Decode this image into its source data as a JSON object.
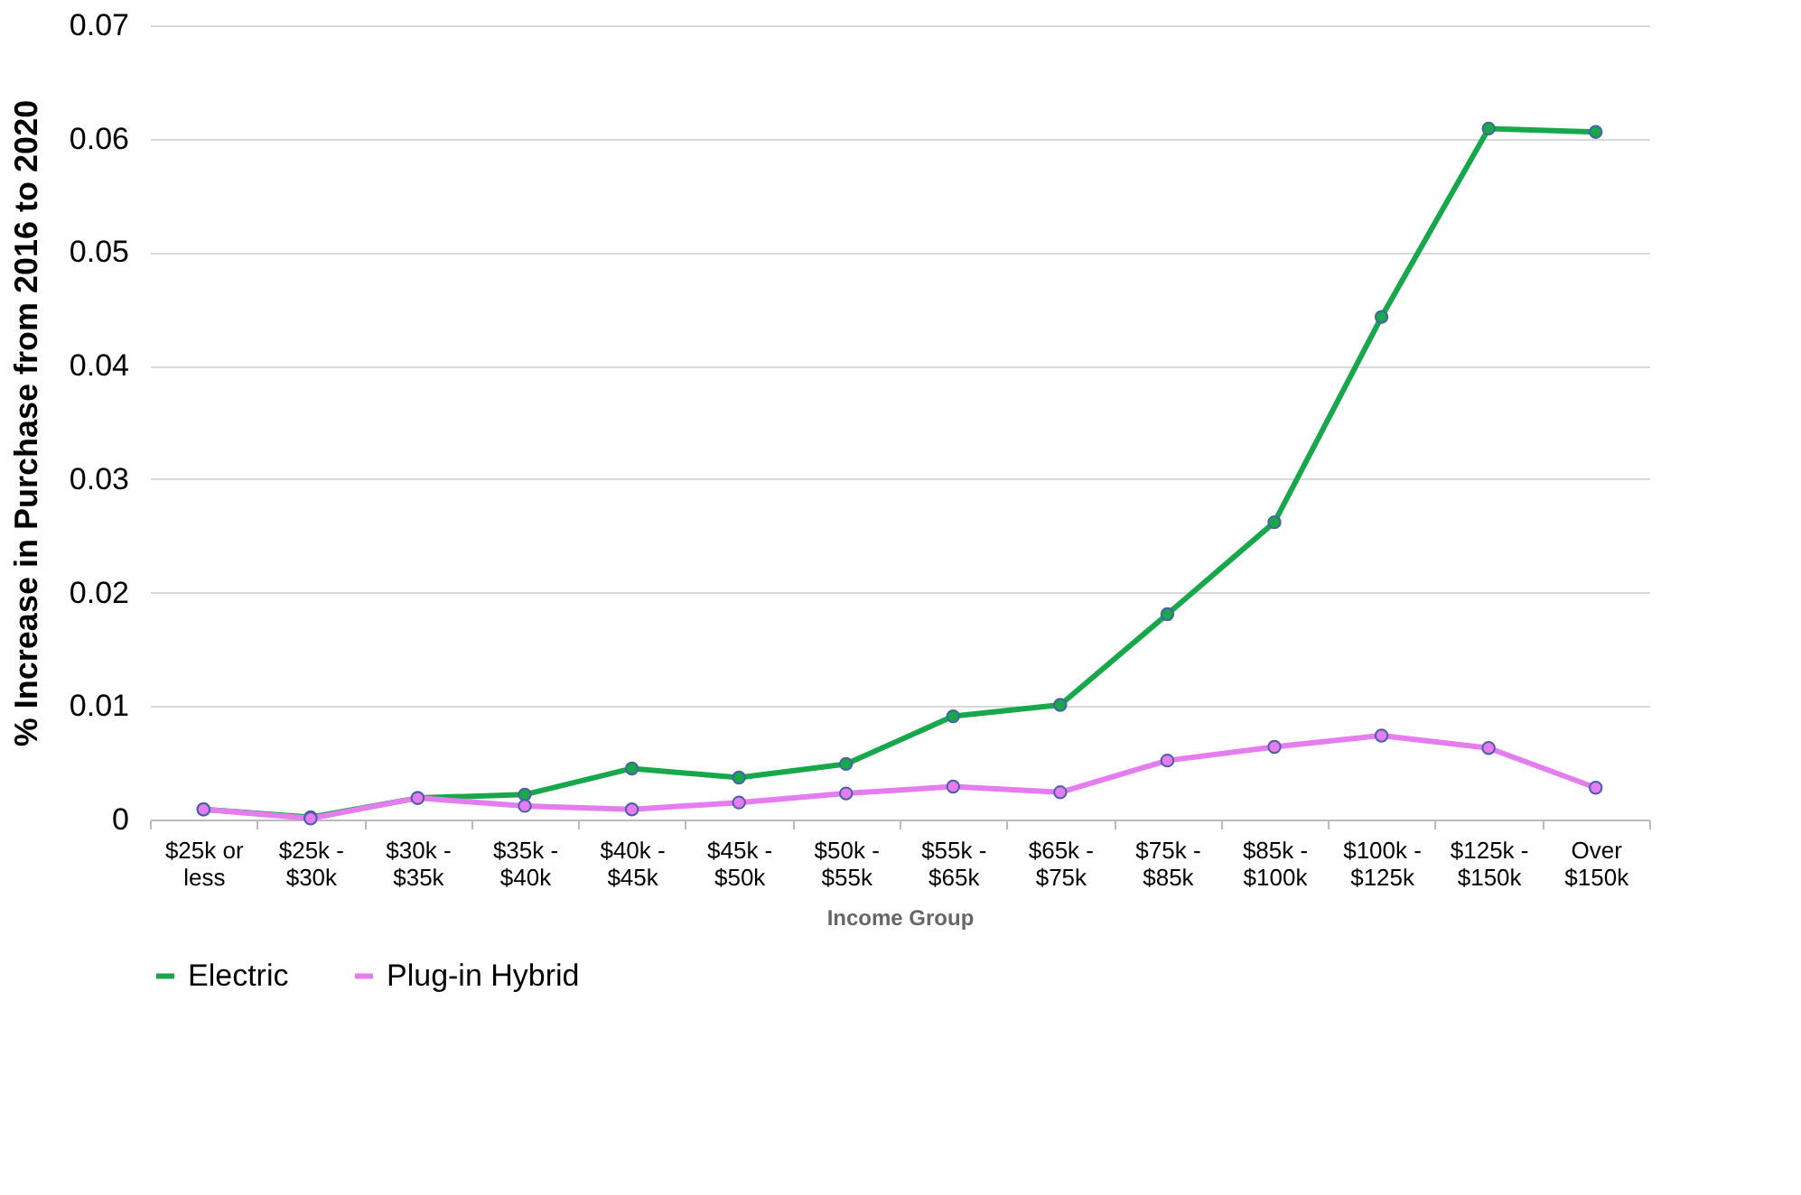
{
  "chart_data": {
    "type": "line",
    "xlabel": "Income Group",
    "ylabel": "% Increase in Purchase from 2016 to 2020",
    "categories": [
      "$25k or less",
      "$25k - $30k",
      "$30k - $35k",
      "$35k - $40k",
      "$40k - $45k",
      "$45k - $50k",
      "$50k - $55k",
      "$55k - $65k",
      "$65k - $75k",
      "$75k - $85k",
      "$85k - $100k",
      "$100k - $125k",
      "$125k - $150k",
      "Over $150k"
    ],
    "series": [
      {
        "name": "Electric",
        "color": "#16a84b",
        "values": [
          0.0009,
          0.0002,
          0.0019,
          0.0022,
          0.0045,
          0.0037,
          0.0049,
          0.0091,
          0.0101,
          0.0181,
          0.0262,
          0.0443,
          0.0609,
          0.0606
        ]
      },
      {
        "name": "Plug-in Hybrid",
        "color": "#e57cf0",
        "values": [
          0.0009,
          0.0001,
          0.0019,
          0.0012,
          0.0009,
          0.0015,
          0.0023,
          0.0029,
          0.0024,
          0.0052,
          0.0064,
          0.0074,
          0.0063,
          0.0028
        ]
      }
    ],
    "ylim": [
      0,
      0.07
    ],
    "yticks": [
      0,
      0.01,
      0.02,
      0.03,
      0.04,
      0.05,
      0.06,
      0.07
    ],
    "grid": "y",
    "legend": "bottom",
    "marker": "circle",
    "line_style": "solid"
  }
}
